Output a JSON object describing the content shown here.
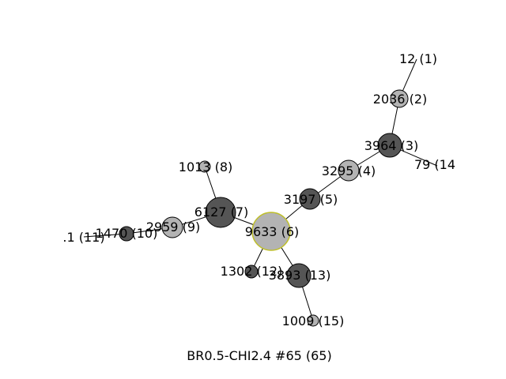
{
  "caption": "BR0.5-CHI2.4 #65 (65)",
  "colors": {
    "dark_node": "#555555",
    "light_node": "#b3b3b3",
    "highlight_stroke": "#bfbf2a",
    "edge": "#000000"
  },
  "nodes": [
    {
      "id": 1,
      "label": "12 (1)",
      "shade": "none"
    },
    {
      "id": 2,
      "label": "2036 (2)",
      "shade": "light"
    },
    {
      "id": 3,
      "label": "3964 (3)",
      "shade": "dark"
    },
    {
      "id": 4,
      "label": "3295 (4)",
      "shade": "light"
    },
    {
      "id": 5,
      "label": "3197 (5)",
      "shade": "dark"
    },
    {
      "id": 6,
      "label": "9633 (6)",
      "shade": "light",
      "highlight": true
    },
    {
      "id": 7,
      "label": "6127 (7)",
      "shade": "dark"
    },
    {
      "id": 8,
      "label": "1013 (8)",
      "shade": "light"
    },
    {
      "id": 9,
      "label": "2959 (9)",
      "shade": "light"
    },
    {
      "id": 10,
      "label": "1470 (10)",
      "shade": "dark"
    },
    {
      "id": 11,
      "label": ".1 (11)",
      "shade": "none"
    },
    {
      "id": 12,
      "label": "1302 (12)",
      "shade": "dark"
    },
    {
      "id": 13,
      "label": "3893 (13)",
      "shade": "dark"
    },
    {
      "id": 14,
      "label": "79 (14",
      "shade": "none"
    },
    {
      "id": 15,
      "label": "1009 (15)",
      "shade": "light"
    }
  ],
  "edges": [
    [
      1,
      2
    ],
    [
      2,
      3
    ],
    [
      3,
      4
    ],
    [
      3,
      14
    ],
    [
      4,
      5
    ],
    [
      5,
      6
    ],
    [
      6,
      7
    ],
    [
      6,
      12
    ],
    [
      6,
      13
    ],
    [
      7,
      8
    ],
    [
      7,
      9
    ],
    [
      9,
      10
    ],
    [
      10,
      11
    ],
    [
      13,
      15
    ]
  ]
}
